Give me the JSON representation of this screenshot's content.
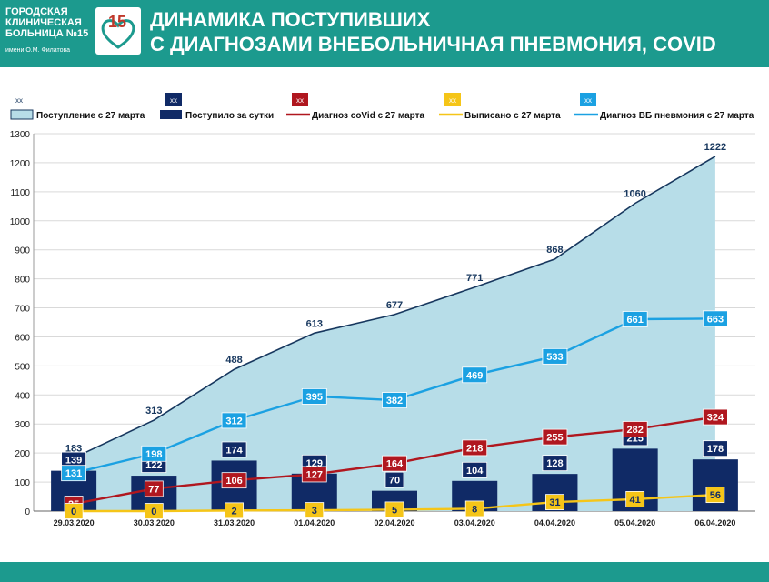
{
  "header": {
    "hospital_name": "ГОРОДСКАЯ\nКЛИНИЧЕСКАЯ\nБОЛЬНИЦА №15",
    "hospital_sub": "имени О.М. Филатова",
    "title": "ДИНАМИКА ПОСТУПИВШИХ\nС ДИАГНОЗАМИ ВНЕБОЛЬНИЧНАЯ ПНЕВМОНИЯ, COVID",
    "bg_color": "#1c9a8e"
  },
  "chart_data": {
    "type": "bar",
    "categories": [
      "29.03.2020",
      "30.03.2020",
      "31.03.2020",
      "01.04.2020",
      "02.04.2020",
      "03.04.2020",
      "04.04.2020",
      "05.04.2020",
      "06.04.2020"
    ],
    "ylim": [
      0,
      1300
    ],
    "yticks": [
      0,
      100,
      200,
      300,
      400,
      500,
      600,
      700,
      800,
      900,
      1000,
      1100,
      1200,
      1300
    ],
    "grid": true,
    "legend_position": "top",
    "series": [
      {
        "name": "Поступление с 27 марта",
        "type": "area",
        "color": "#b7dde8",
        "line_color": "#17375e",
        "values": [
          183,
          313,
          488,
          613,
          677,
          771,
          868,
          1060,
          1222
        ]
      },
      {
        "name": "Поступило за сутки",
        "type": "bar",
        "color": "#102a66",
        "values": [
          139,
          122,
          174,
          129,
          70,
          104,
          128,
          215,
          178
        ]
      },
      {
        "name": "Диагноз coVid с 27 марта",
        "type": "line",
        "color": "#b0171f",
        "values": [
          25,
          77,
          106,
          127,
          164,
          218,
          255,
          282,
          324
        ]
      },
      {
        "name": "Выписано с 27 марта",
        "type": "line",
        "color": "#f5c518",
        "values": [
          0,
          0,
          2,
          3,
          5,
          8,
          31,
          41,
          56
        ]
      },
      {
        "name": "Диагноз ВБ пневмония с 27 марта",
        "type": "line",
        "color": "#1ba1e2",
        "values": [
          131,
          198,
          312,
          395,
          382,
          469,
          533,
          661,
          663
        ]
      }
    ],
    "legend_marker_text": "xx"
  }
}
